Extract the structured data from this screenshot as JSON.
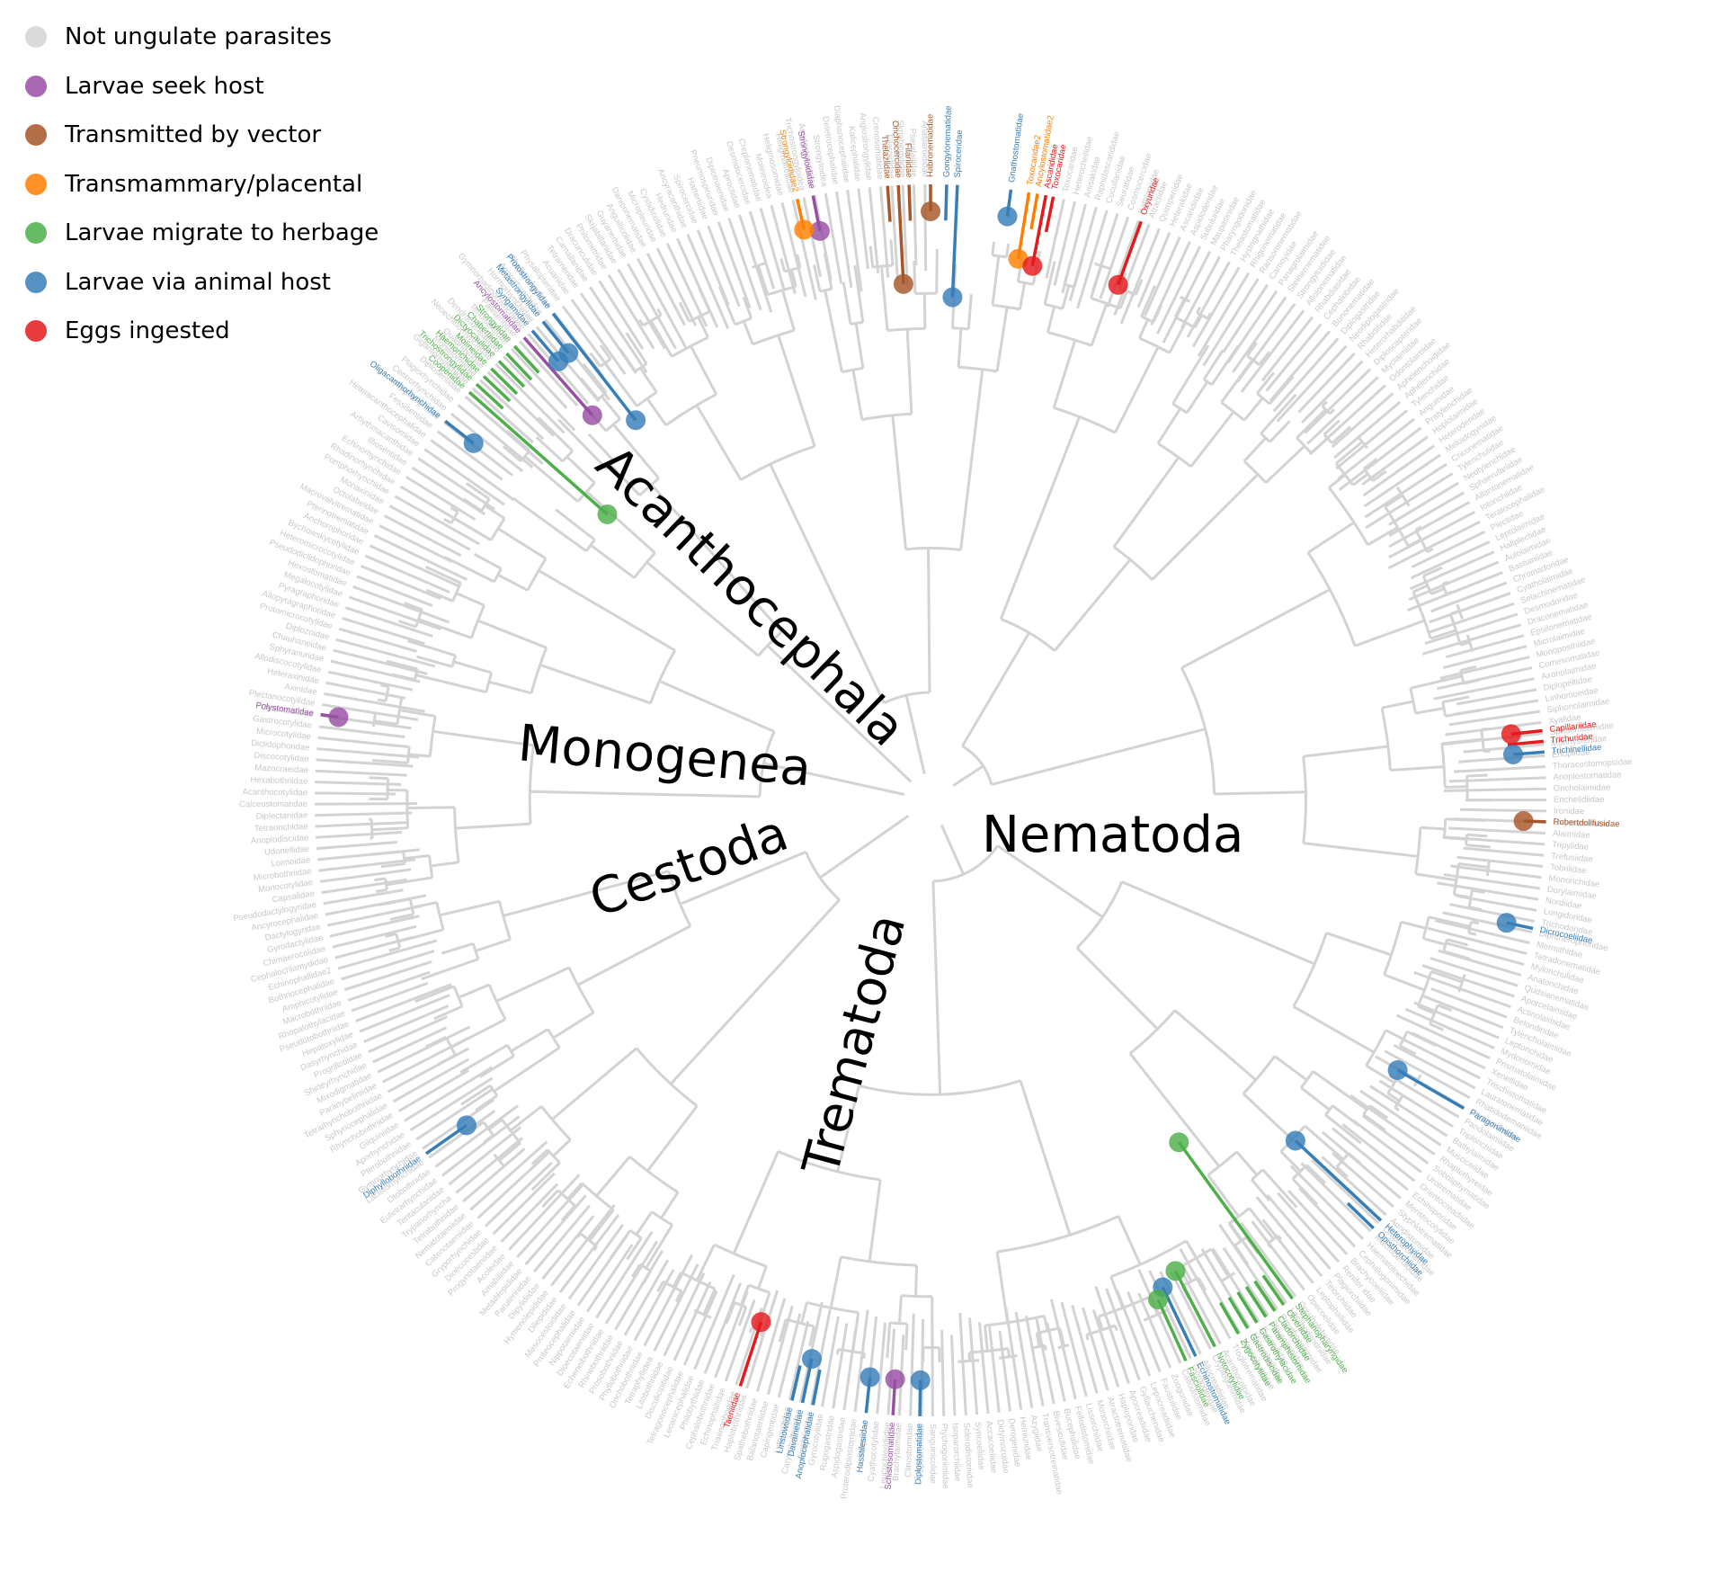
{
  "legend": [
    {
      "label": "Not ungulate parasites",
      "color": "#d3d3d3"
    },
    {
      "label": "Larvae seek host",
      "color": "#984ea3"
    },
    {
      "label": "Transmitted by vector",
      "color": "#a65628"
    },
    {
      "label": "Transmammary/placental",
      "color": "#ff7f00"
    },
    {
      "label": "Larvae migrate to herbage",
      "color": "#4daf4a"
    },
    {
      "label": "Larvae via animal host",
      "color": "#377eb8"
    },
    {
      "label": "Eggs ingested",
      "color": "#e41a1c"
    }
  ],
  "clades": {
    "acanthocephala": "Acanthocephala",
    "monogenea": "Monogenea",
    "cestoda": "Cestoda",
    "nematoda": "Nematoda",
    "trematoda": "Trematoda"
  },
  "colors": {
    "grey": "#d3d3d3",
    "seek": "#984ea3",
    "vector": "#a65628",
    "transmammary": "#ff7f00",
    "herbage": "#4daf4a",
    "animal": "#377eb8",
    "eggs": "#e41a1c"
  },
  "highlighted_families": [
    {
      "name": "Strongyloididae",
      "category": "seek"
    },
    {
      "name": "Strongyloididae2",
      "category": "transmammary"
    },
    {
      "name": "Onchocercidae",
      "category": "vector"
    },
    {
      "name": "Thelaziidae",
      "category": "vector"
    },
    {
      "name": "Filariidae",
      "category": "vector"
    },
    {
      "name": "Habronematidae",
      "category": "vector"
    },
    {
      "name": "Gongylonematidae",
      "category": "animal"
    },
    {
      "name": "Spiroceridae",
      "category": "animal"
    },
    {
      "name": "Gnathostomatidae",
      "category": "animal"
    },
    {
      "name": "Toxocaridae2",
      "category": "transmammary"
    },
    {
      "name": "Ancylostomatidae2",
      "category": "transmammary"
    },
    {
      "name": "Ascarididae",
      "category": "eggs"
    },
    {
      "name": "Toxocaridae",
      "category": "eggs"
    },
    {
      "name": "Oxyuridae",
      "category": "eggs"
    },
    {
      "name": "Capillariidae",
      "category": "eggs"
    },
    {
      "name": "Trichuridae",
      "category": "eggs"
    },
    {
      "name": "Trichinellidae",
      "category": "animal"
    },
    {
      "name": "Robertdollfusidae",
      "category": "vector"
    },
    {
      "name": "Dicrocoeliidae",
      "category": "animal"
    },
    {
      "name": "Paragonimidae",
      "category": "animal"
    },
    {
      "name": "Heterophyidae",
      "category": "animal"
    },
    {
      "name": "Opisthorchiidae",
      "category": "animal"
    },
    {
      "name": "Stephanopharyngidae",
      "category": "herbage"
    },
    {
      "name": "Olveriidae",
      "category": "herbage"
    },
    {
      "name": "Cladorchiidae",
      "category": "herbage"
    },
    {
      "name": "Paramphistomidae",
      "category": "herbage"
    },
    {
      "name": "Gastrothylacidae",
      "category": "herbage"
    },
    {
      "name": "Gastrodiscidae",
      "category": "herbage"
    },
    {
      "name": "Zygocotylidae",
      "category": "herbage"
    },
    {
      "name": "Notocotylidae",
      "category": "herbage"
    },
    {
      "name": "Echinostomatidae",
      "category": "animal"
    },
    {
      "name": "Fasciolidae",
      "category": "herbage"
    },
    {
      "name": "Diplostomatidae",
      "category": "animal"
    },
    {
      "name": "Schistosomatidae",
      "category": "seek"
    },
    {
      "name": "Hasstilesiidae",
      "category": "animal"
    },
    {
      "name": "Anoplocephalidae",
      "category": "animal"
    },
    {
      "name": "Davaineidae",
      "category": "animal"
    },
    {
      "name": "Linstowiidae",
      "category": "animal"
    },
    {
      "name": "Taeniidae",
      "category": "eggs"
    },
    {
      "name": "Diphyllobothriidae",
      "category": "animal"
    },
    {
      "name": "Polystomatidae",
      "category": "seek"
    },
    {
      "name": "Oligacanthorhynchidae",
      "category": "animal"
    },
    {
      "name": "Cooperiidae",
      "category": "herbage"
    },
    {
      "name": "Trichostrongylidae",
      "category": "herbage"
    },
    {
      "name": "Haemonchidae",
      "category": "herbage"
    },
    {
      "name": "Molineidae",
      "category": "herbage"
    },
    {
      "name": "Dictyocaulidae",
      "category": "herbage"
    },
    {
      "name": "Chabertiidae",
      "category": "herbage"
    },
    {
      "name": "Strongylidae",
      "category": "herbage"
    },
    {
      "name": "Ancylostomatidae",
      "category": "seek"
    },
    {
      "name": "Syngamidae",
      "category": "animal"
    },
    {
      "name": "Metastrongylidae",
      "category": "animal"
    },
    {
      "name": "Protostrongylidae",
      "category": "animal"
    }
  ],
  "grey_families": [
    "Toxocaridae",
    "Heterocheilidae",
    "Anisakidae",
    "Raphidascarididae",
    "Cucullanidae",
    "Seuratidae",
    "Cosmocercidae",
    "Kathlaniidae",
    "Atractidae",
    "Quimperiidae",
    "Heterakidae",
    "Ascaridiidae",
    "Aspidoderidae",
    "Subuluridae",
    "Maupasinidae",
    "Pharyngodonidae",
    "Thelastomatidae",
    "Hystrignathidae",
    "Rhigonematidae",
    "Ransomnematidae",
    "Carnoyidae",
    "Panagrolaimidae",
    "Steinernematidae",
    "Strongyloididae",
    "Alloionematidae",
    "Rhabdiasidae",
    "Cephalobidae",
    "Bunonematidae",
    "Diplogastridae",
    "Neodiplogastridae",
    "Rhabditidae",
    "Heterorhabditidae",
    "Diploscapteridae",
    "Myolaimidae",
    "Odontolaimidae",
    "Aphelenchoididae",
    "Aphelenchidae",
    "Tylenchidae",
    "Anguinidae",
    "Pratylenchidae",
    "Hoplolaimidae",
    "Heteroderidae",
    "Meloidogynidae",
    "Criconematidae",
    "Tylenchulidae",
    "Neotylenchidae",
    "Sphaerulariidae",
    "Allantonematidae",
    "Iotonchiidae",
    "Teratocephalidae",
    "Plectidae",
    "Leptolaimidae",
    "Haliplectidae",
    "Aulolaimidae",
    "Bastianiidae",
    "Chromadoridae",
    "Cyatholaimidae",
    "Selachinematidae",
    "Desmodoridae",
    "Draconematidae",
    "Epsilonematidae",
    "Microlaimidae",
    "Monoposthiidae",
    "Comesomatidae",
    "Axonolaimidae",
    "Diplopeltidae",
    "Linhomoeidae",
    "Siphonolaimidae",
    "Xyalidae",
    "Sphaerolaimidae",
    "Monhysteridae",
    "Enoplidae",
    "Thoracostomopsidae",
    "Anoplostomatidae",
    "Oncholaimidae",
    "Enchelidiidae",
    "Ironidae",
    "Oxystominidae",
    "Alaimidae",
    "Tripylidae",
    "Trefusiidae",
    "Tobrilidae",
    "Mononchidae",
    "Dorylaimidae",
    "Nordiidae",
    "Longidoridae",
    "Trichodoridae",
    "Diphtherophoridae",
    "Mermithidae",
    "Tetradonematidae",
    "Mylonchulidae",
    "Anatonchidae",
    "Qudsianematidae",
    "Aporcelaimidae",
    "Actinolaimidae",
    "Belondiridae",
    "Tylencholaimidae",
    "Leptonchidae",
    "Mydonomidae",
    "Prismatolaimidae",
    "Xenellidae",
    "Trischistomatidae",
    "Lauratonematidae",
    "Rhabdodemaniidae",
    "Crypionchidae",
    "Pandolaimidae",
    "Triplonchidae",
    "Bathylaimidae",
    "Musciceiidae",
    "Rhaptothyreidae",
    "Soboliphymatidae",
    "Urotrematidae",
    "Orientocreadiidae",
    "Echinoporidae",
    "Meristocotylidae",
    "Styphlotrematidae",
    "Auridistomidae",
    "Omphalometridae",
    "Macroderoididae",
    "Haematoloechidae",
    "Cephalogonimidae",
    "Brachycoeliidae",
    "Renifer idae",
    "Plagiorchiidae",
    "Telorchiidae",
    "Leptophallidae",
    "Opecoelidae",
    "Opistholebetidae",
    "Lecithodendriidae",
    "Prosthogonimidae",
    "Pleurogenidae",
    "Eucotylidae",
    "Microphallidae",
    "Nanophyetidae",
    "Troglotrematidae",
    "Acanthocolpidae",
    "Cryptogonimidae",
    "Allocreadiidae",
    "Gorgoderidae",
    "Callodistomidae",
    "Zoogonidae",
    "Faustulidae",
    "Lepocreadiidae",
    "Gyliauchenidae",
    "Apocreadiidae",
    "Haploporidae",
    "Atractotrematidae",
    "Monorchiidae",
    "Lissorchiidae",
    "Fellodistomidae",
    "Bucephalidae",
    "Bivesiculidae",
    "Transversotrematidae",
    "Azygiidae",
    "Hemiuridae",
    "Derogenidae",
    "Didymozoidae",
    "Accacoeliidae",
    "Syncoeliidae",
    "Sclerodistomidae",
    "Isoparorchiidae",
    "Ptychogonimidae",
    "Sanguinicolidae",
    "Spirorchiidae",
    "Clinostomidae",
    "Brachylaimidae",
    "Leucochloridiidae",
    "Cyathocotylidae",
    "Strigeidae",
    "Proterodiplostomidae",
    "Aspidogastridae",
    "Rugogastridae",
    "Gyrocotylidae",
    "Amphilinidae",
    "Caryophyllaeidae",
    "Lytocestidae",
    "Capingentidae",
    "Balanotaeniidae",
    "Spathebothriidae",
    "Haplobothriidae",
    "Triaenophoridae",
    "Echinophallidae",
    "Cephalobothriidae",
    "Philobythiidae",
    "Lecanicephalidae",
    "Tetragonocephalidae",
    "Disculicipitidae",
    "Litobothriidae",
    "Tetraphyllidea",
    "Onchobothriidae",
    "Phyllobothriidae",
    "Prosobothriidae",
    "Rhinebothriidae",
    "Echeneibothriidae",
    "Dioecotaeniidae",
    "Nippotaeniidae",
    "Proteocephalidae",
    "Mesocestoididae",
    "Dilepididae",
    "Hymenolepididae",
    "Dipylidiidae",
    "Paruterinidae",
    "Metadilepididae",
    "Amabiliidae",
    "Acoleidae",
    "Progynotaeniidae",
    "Dioecocestidae",
    "Gryporhynchidae",
    "Catenotaeniidae",
    "Nematotaeniidae",
    "Tetrabothriidae",
    "Trypanorhyncha",
    "Tentaculariidae",
    "Eutetrarhynchidae",
    "Otobothriidae",
    "Lacistorhynchidae",
    "Gymnorhynchidae",
    "Pterobothriidae",
    "Aporhynchidae",
    "Gilquiniidae",
    "Rhynchobothriidae",
    "Sphyriocephalidae",
    "Tetrarhynchobothriidae",
    "Paranybeliniidae",
    "Mixodigmatidae",
    "Shirleyrhynchidae",
    "Progrillotiidae",
    "Dasyrhynchidae",
    "Hepatoxylidae",
    "Pseudotobothriidae",
    "Rhopalothylacidae",
    "Macrobothriidae",
    "Amphicotylidae",
    "Bothriocephalidae",
    "Echinophallidae2",
    "Cephalochlamydidae",
    "Chimaerocolidae",
    "Gyrodactylidae",
    "Dactylogyridae",
    "Ancyrocephalidae",
    "Pseudodactylogyridae",
    "Capsalidae",
    "Monocotylidae",
    "Microbothriidae",
    "Loimoidae",
    "Udonellidae",
    "Anoplodiscidae",
    "Tetraonchidae",
    "Diplectanidae",
    "Calceostomatidae",
    "Acanthocotylidae",
    "Hexabothriidae",
    "Mazocraeidae",
    "Discocotylidae",
    "Diclidophoridae",
    "Microcotylidae",
    "Gastrocotylidae",
    "Octomacridae",
    "Plectanocotylidae",
    "Axinidae",
    "Heteraxinidae",
    "Allodiscocotylidae",
    "Sphyranuridae",
    "Chauhaneidae",
    "Diplozoidae",
    "Protomicrocotylidae",
    "Allopyragraphoridae",
    "Pyragraphoridae",
    "Megalocotylidae",
    "Hexostomatidae",
    "Pseudodiclidophoridae",
    "Heteromicrocotylidae",
    "Bychowskycotylidae",
    "Anchorophoridae",
    "Pterinotrematidae",
    "Macrovalvitrematidae",
    "Octolabeidae",
    "Monaxinidae",
    "Pomphorhynchidae",
    "Rhadinorhynchidae",
    "Echinorhynchidae",
    "Illiosentidae",
    "Arhythmacanthidae",
    "Cavisomidae",
    "Heteracanthocephalidae",
    "Fessisentidae",
    "Polymorphidae",
    "Centrorhynchidae",
    "Plagiorhynchidae",
    "Diplosentidae",
    "Gigantorhynchidae",
    "Moniliformidae",
    "Quadrigyridae",
    "Neoechinorhynchidae",
    "Dendronucleatidae",
    "Tenuisentidae",
    "Pallisentidae",
    "Gymnorhadinorhynchidae",
    "Hormorhynchidae",
    "Apororhynchidae",
    "Rhabdochonidae",
    "Physalopteridae",
    "Acuariidae",
    "Tetrameridae",
    "Camallanidae",
    "Dracunculidae",
    "Philometridae",
    "Skrjabillanidae",
    "Guyanemidae",
    "Anguillicolidae",
    "Daniconematidae",
    "Micropleuridae",
    "Cystidicolidae",
    "Hedruridae",
    "Ancyracanthidae",
    "Spirocercidae",
    "Hartertiidae",
    "Pneumospiruridae",
    "Diplotriaenidae",
    "Aproctidae",
    "Desmidocercidae",
    "Creplonematidae",
    "Molineoidea",
    "Heligmosomidae",
    "Heligmonellidae",
    "Trichostrongyloidea",
    "Amidostomatidae",
    "Strongyloidea",
    "Deletrocephalidae",
    "Diaphanocephalidae",
    "Kalicephalidae",
    "Angiostrongylidae",
    "Crenosomatidae",
    "Filaroididae",
    "Skrjabingylidae",
    "Pseudaliidae",
    "Anafilaroididae"
  ]
}
